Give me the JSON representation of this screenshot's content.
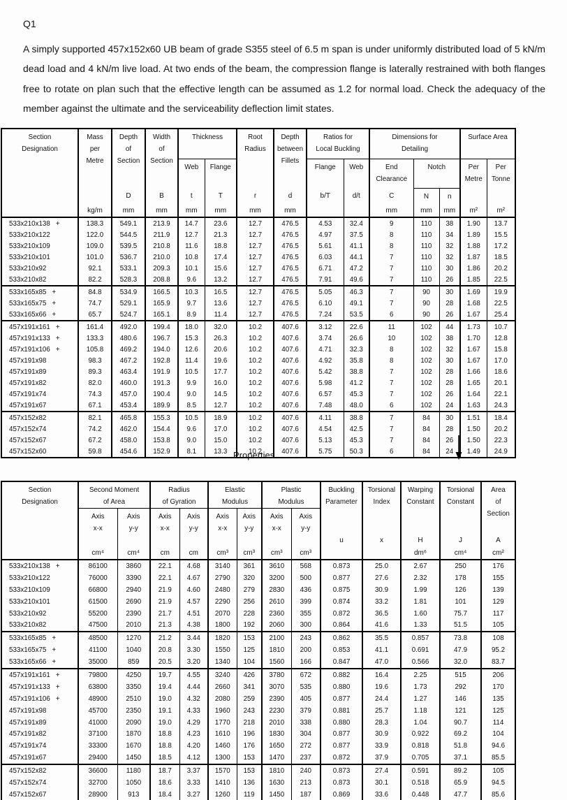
{
  "question": {
    "label": "Q1",
    "text": "A simply supported 457x152x60 UB beam of grade S355 steel of 6.5 m span is under uniformly distributed load of 5 kN/m dead load and 4 kN/m live load. At two ends of the beam, the compression flange is laterally restrained with both flanges free to rotate on plan such that the effective length can be assumed as 1.2 for normal load. Check the adequacy of the member against the ultimate and the serviceability deflection limit states."
  },
  "properties_caption": "Properties",
  "table1": {
    "header": {
      "designation": "Section\nDesignation",
      "mass": "Mass\nper\nMetre",
      "depth": "Depth\nof\nSection",
      "width": "Width\nof\nSection",
      "thickness": "Thickness",
      "thickness_web": "Web",
      "thickness_flange": "Flange",
      "root_radius": "Root\nRadius",
      "depth_fillets": "Depth\nbetween\nFillets",
      "ratios": "Ratios for\nLocal Buckling",
      "ratios_flange": "Flange",
      "ratios_web": "Web",
      "dimensions": "Dimensions for\nDetailing",
      "end_clearance": "End\nClearance",
      "notch": "Notch",
      "surface_area": "Surface Area",
      "per_metre": "Per\nMetre",
      "per_tonne": "Per\nTonne",
      "symbols": [
        "",
        "",
        "D",
        "B",
        "t",
        "T",
        "r",
        "d",
        "b/T",
        "d/t",
        "C",
        "N",
        "n",
        "",
        ""
      ],
      "units": [
        "",
        "kg/m",
        "mm",
        "mm",
        "mm",
        "mm",
        "mm",
        "mm",
        "",
        "",
        "mm",
        "mm",
        "mm",
        "m²",
        "m²"
      ]
    },
    "rows": [
      {
        "designation": "533x210x138",
        "plus": "+",
        "values": [
          "138.3",
          "549.1",
          "213.9",
          "14.7",
          "23.6",
          "12.7",
          "476.5",
          "4.53",
          "32.4",
          "9",
          "110",
          "38",
          "1.90",
          "13.7"
        ]
      },
      {
        "designation": "533x210x122",
        "plus": "",
        "values": [
          "122.0",
          "544.5",
          "211.9",
          "12.7",
          "21.3",
          "12.7",
          "476.5",
          "4.97",
          "37.5",
          "8",
          "110",
          "34",
          "1.89",
          "15.5"
        ]
      },
      {
        "designation": "533x210x109",
        "plus": "",
        "values": [
          "109.0",
          "539.5",
          "210.8",
          "11.6",
          "18.8",
          "12.7",
          "476.5",
          "5.61",
          "41.1",
          "8",
          "110",
          "32",
          "1.88",
          "17.2"
        ]
      },
      {
        "designation": "533x210x101",
        "plus": "",
        "values": [
          "101.0",
          "536.7",
          "210.0",
          "10.8",
          "17.4",
          "12.7",
          "476.5",
          "6.03",
          "44.1",
          "7",
          "110",
          "32",
          "1.87",
          "18.5"
        ]
      },
      {
        "designation": "533x210x92",
        "plus": "",
        "values": [
          "92.1",
          "533.1",
          "209.3",
          "10.1",
          "15.6",
          "12.7",
          "476.5",
          "6.71",
          "47.2",
          "7",
          "110",
          "30",
          "1.86",
          "20.2"
        ]
      },
      {
        "designation": "533x210x82",
        "plus": "",
        "values": [
          "82.2",
          "528.3",
          "208.8",
          "9.6",
          "13.2",
          "12.7",
          "476.5",
          "7.91",
          "49.6",
          "7",
          "110",
          "26",
          "1.85",
          "22.5"
        ]
      },
      {
        "designation": "533x165x85",
        "plus": "+",
        "values": [
          "84.8",
          "534.9",
          "166.5",
          "10.3",
          "16.5",
          "12.7",
          "476.5",
          "5.05",
          "46.3",
          "7",
          "90",
          "30",
          "1.69",
          "19.9"
        ]
      },
      {
        "designation": "533x165x75",
        "plus": "+",
        "values": [
          "74.7",
          "529.1",
          "165.9",
          "9.7",
          "13.6",
          "12.7",
          "476.5",
          "6.10",
          "49.1",
          "7",
          "90",
          "28",
          "1.68",
          "22.5"
        ]
      },
      {
        "designation": "533x165x66",
        "plus": "+",
        "values": [
          "65.7",
          "524.7",
          "165.1",
          "8.9",
          "11.4",
          "12.7",
          "476.5",
          "7.24",
          "53.5",
          "6",
          "90",
          "26",
          "1.67",
          "25.4"
        ]
      },
      {
        "designation": "457x191x161",
        "plus": "+",
        "values": [
          "161.4",
          "492.0",
          "199.4",
          "18.0",
          "32.0",
          "10.2",
          "407.6",
          "3.12",
          "22.6",
          "11",
          "102",
          "44",
          "1.73",
          "10.7"
        ]
      },
      {
        "designation": "457x191x133",
        "plus": "+",
        "values": [
          "133.3",
          "480.6",
          "196.7",
          "15.3",
          "26.3",
          "10.2",
          "407.6",
          "3.74",
          "26.6",
          "10",
          "102",
          "38",
          "1.70",
          "12.8"
        ]
      },
      {
        "designation": "457x191x106",
        "plus": "+",
        "values": [
          "105.8",
          "469.2",
          "194.0",
          "12.6",
          "20.6",
          "10.2",
          "407.6",
          "4.71",
          "32.3",
          "8",
          "102",
          "32",
          "1.67",
          "15.8"
        ]
      },
      {
        "designation": "457x191x98",
        "plus": "",
        "values": [
          "98.3",
          "467.2",
          "192.8",
          "11.4",
          "19.6",
          "10.2",
          "407.6",
          "4.92",
          "35.8",
          "8",
          "102",
          "30",
          "1.67",
          "17.0"
        ]
      },
      {
        "designation": "457x191x89",
        "plus": "",
        "values": [
          "89.3",
          "463.4",
          "191.9",
          "10.5",
          "17.7",
          "10.2",
          "407.6",
          "5.42",
          "38.8",
          "7",
          "102",
          "28",
          "1.66",
          "18.6"
        ]
      },
      {
        "designation": "457x191x82",
        "plus": "",
        "values": [
          "82.0",
          "460.0",
          "191.3",
          "9.9",
          "16.0",
          "10.2",
          "407.6",
          "5.98",
          "41.2",
          "7",
          "102",
          "28",
          "1.65",
          "20.1"
        ]
      },
      {
        "designation": "457x191x74",
        "plus": "",
        "values": [
          "74.3",
          "457.0",
          "190.4",
          "9.0",
          "14.5",
          "10.2",
          "407.6",
          "6.57",
          "45.3",
          "7",
          "102",
          "26",
          "1.64",
          "22.1"
        ]
      },
      {
        "designation": "457x191x67",
        "plus": "",
        "values": [
          "67.1",
          "453.4",
          "189.9",
          "8.5",
          "12.7",
          "10.2",
          "407.6",
          "7.48",
          "48.0",
          "6",
          "102",
          "24",
          "1.63",
          "24.3"
        ]
      },
      {
        "designation": "457x152x82",
        "plus": "",
        "values": [
          "82.1",
          "465.8",
          "155.3",
          "10.5",
          "18.9",
          "10.2",
          "407.6",
          "4.11",
          "38.8",
          "7",
          "84",
          "30",
          "1.51",
          "18.4"
        ]
      },
      {
        "designation": "457x152x74",
        "plus": "",
        "values": [
          "74.2",
          "462.0",
          "154.4",
          "9.6",
          "17.0",
          "10.2",
          "407.6",
          "4.54",
          "42.5",
          "7",
          "84",
          "28",
          "1.50",
          "20.2"
        ]
      },
      {
        "designation": "457x152x67",
        "plus": "",
        "values": [
          "67.2",
          "458.0",
          "153.8",
          "9.0",
          "15.0",
          "10.2",
          "407.6",
          "5.13",
          "45.3",
          "7",
          "84",
          "26",
          "1.50",
          "22.3"
        ]
      },
      {
        "designation": "457x152x60",
        "plus": "",
        "values": [
          "59.8",
          "454.6",
          "152.9",
          "8.1",
          "13.3",
          "10.2",
          "407.6",
          "5.75",
          "50.3",
          "6",
          "84",
          "24",
          "1.49",
          "24.9"
        ]
      }
    ]
  },
  "table2": {
    "header": {
      "designation": "Section\nDesignation",
      "second_moment": "Second Moment\nof Area",
      "radius_gyration": "Radius\nof Gyration",
      "elastic_modulus": "Elastic\nModulus",
      "plastic_modulus": "Plastic\nModulus",
      "axis_xx": "Axis\nx-x",
      "axis_yy": "Axis\ny-y",
      "buckling": "Buckling\nParameter",
      "torsional_index": "Torsional\nIndex",
      "warping": "Warping\nConstant",
      "torsional_constant": "Torsional\nConstant",
      "area": "Area\nof\nSection",
      "symbols": [
        "",
        "",
        "",
        "",
        "",
        "",
        "",
        "",
        "",
        "u",
        "x",
        "H",
        "J",
        "A"
      ],
      "units": [
        "",
        "cm⁴",
        "cm⁴",
        "cm",
        "cm",
        "cm³",
        "cm³",
        "cm³",
        "cm³",
        "",
        "",
        "dm⁶",
        "cm⁴",
        "cm²"
      ]
    },
    "rows": [
      {
        "designation": "533x210x138",
        "plus": "+",
        "values": [
          "86100",
          "3860",
          "22.1",
          "4.68",
          "3140",
          "361",
          "3610",
          "568",
          "0.873",
          "25.0",
          "2.67",
          "250",
          "176"
        ]
      },
      {
        "designation": "533x210x122",
        "plus": "",
        "values": [
          "76000",
          "3390",
          "22.1",
          "4.67",
          "2790",
          "320",
          "3200",
          "500",
          "0.877",
          "27.6",
          "2.32",
          "178",
          "155"
        ]
      },
      {
        "designation": "533x210x109",
        "plus": "",
        "values": [
          "66800",
          "2940",
          "21.9",
          "4.60",
          "2480",
          "279",
          "2830",
          "436",
          "0.875",
          "30.9",
          "1.99",
          "126",
          "139"
        ]
      },
      {
        "designation": "533x210x101",
        "plus": "",
        "values": [
          "61500",
          "2690",
          "21.9",
          "4.57",
          "2290",
          "256",
          "2610",
          "399",
          "0.874",
          "33.2",
          "1.81",
          "101",
          "129"
        ]
      },
      {
        "designation": "533x210x92",
        "plus": "",
        "values": [
          "55200",
          "2390",
          "21.7",
          "4.51",
          "2070",
          "228",
          "2360",
          "355",
          "0.872",
          "36.5",
          "1.60",
          "75.7",
          "117"
        ]
      },
      {
        "designation": "533x210x82",
        "plus": "",
        "values": [
          "47500",
          "2010",
          "21.3",
          "4.38",
          "1800",
          "192",
          "2060",
          "300",
          "0.864",
          "41.6",
          "1.33",
          "51.5",
          "105"
        ]
      },
      {
        "designation": "533x165x85",
        "plus": "+",
        "values": [
          "48500",
          "1270",
          "21.2",
          "3.44",
          "1820",
          "153",
          "2100",
          "243",
          "0.862",
          "35.5",
          "0.857",
          "73.8",
          "108"
        ]
      },
      {
        "designation": "533x165x75",
        "plus": "+",
        "values": [
          "41100",
          "1040",
          "20.8",
          "3.30",
          "1550",
          "125",
          "1810",
          "200",
          "0.853",
          "41.1",
          "0.691",
          "47.9",
          "95.2"
        ]
      },
      {
        "designation": "533x165x66",
        "plus": "+",
        "values": [
          "35000",
          "859",
          "20.5",
          "3.20",
          "1340",
          "104",
          "1560",
          "166",
          "0.847",
          "47.0",
          "0.566",
          "32.0",
          "83.7"
        ]
      },
      {
        "designation": "457x191x161",
        "plus": "+",
        "values": [
          "79800",
          "4250",
          "19.7",
          "4.55",
          "3240",
          "426",
          "3780",
          "672",
          "0.882",
          "16.4",
          "2.25",
          "515",
          "206"
        ]
      },
      {
        "designation": "457x191x133",
        "plus": "+",
        "values": [
          "63800",
          "3350",
          "19.4",
          "4.44",
          "2660",
          "341",
          "3070",
          "535",
          "0.880",
          "19.6",
          "1.73",
          "292",
          "170"
        ]
      },
      {
        "designation": "457x191x106",
        "plus": "+",
        "values": [
          "48900",
          "2510",
          "19.0",
          "4.32",
          "2080",
          "259",
          "2390",
          "405",
          "0.877",
          "24.4",
          "1.27",
          "146",
          "135"
        ]
      },
      {
        "designation": "457x191x98",
        "plus": "",
        "values": [
          "45700",
          "2350",
          "19.1",
          "4.33",
          "1960",
          "243",
          "2230",
          "379",
          "0.881",
          "25.7",
          "1.18",
          "121",
          "125"
        ]
      },
      {
        "designation": "457x191x89",
        "plus": "",
        "values": [
          "41000",
          "2090",
          "19.0",
          "4.29",
          "1770",
          "218",
          "2010",
          "338",
          "0.880",
          "28.3",
          "1.04",
          "90.7",
          "114"
        ]
      },
      {
        "designation": "457x191x82",
        "plus": "",
        "values": [
          "37100",
          "1870",
          "18.8",
          "4.23",
          "1610",
          "196",
          "1830",
          "304",
          "0.877",
          "30.9",
          "0.922",
          "69.2",
          "104"
        ]
      },
      {
        "designation": "457x191x74",
        "plus": "",
        "values": [
          "33300",
          "1670",
          "18.8",
          "4.20",
          "1460",
          "176",
          "1650",
          "272",
          "0.877",
          "33.9",
          "0.818",
          "51.8",
          "94.6"
        ]
      },
      {
        "designation": "457x191x67",
        "plus": "",
        "values": [
          "29400",
          "1450",
          "18.5",
          "4.12",
          "1300",
          "153",
          "1470",
          "237",
          "0.872",
          "37.9",
          "0.705",
          "37.1",
          "85.5"
        ]
      },
      {
        "designation": "457x152x82",
        "plus": "",
        "values": [
          "36600",
          "1180",
          "18.7",
          "3.37",
          "1570",
          "153",
          "1810",
          "240",
          "0.873",
          "27.4",
          "0.591",
          "89.2",
          "105"
        ]
      },
      {
        "designation": "457x152x74",
        "plus": "",
        "values": [
          "32700",
          "1050",
          "18.6",
          "3.33",
          "1410",
          "136",
          "1630",
          "213",
          "0.873",
          "30.1",
          "0.518",
          "65.9",
          "94.5"
        ]
      },
      {
        "designation": "457x152x67",
        "plus": "",
        "values": [
          "28900",
          "913",
          "18.4",
          "3.27",
          "1260",
          "119",
          "1450",
          "187",
          "0.869",
          "33.6",
          "0.448",
          "47.7",
          "85.6"
        ]
      },
      {
        "designation": "457x152x60",
        "plus": "",
        "values": [
          "25500",
          "795",
          "18.3",
          "3.23",
          "1120",
          "104",
          "1290",
          "163",
          "0.868",
          "37.5",
          "0.387",
          "33.8",
          "76.2"
        ]
      }
    ]
  }
}
